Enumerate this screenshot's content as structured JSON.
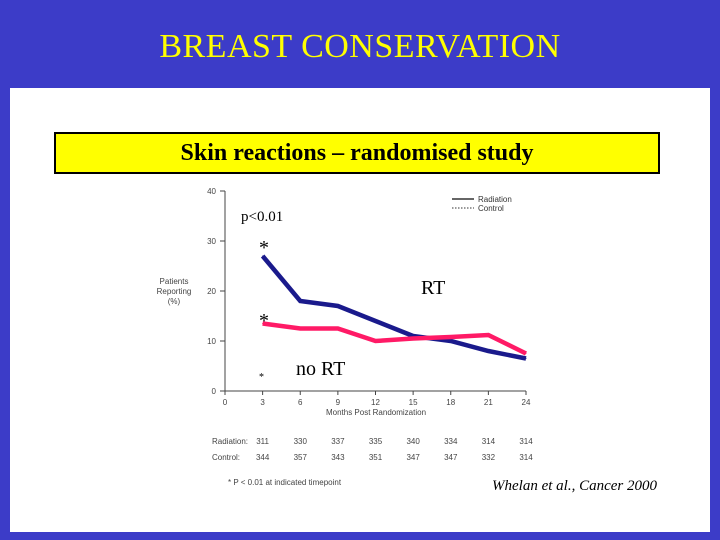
{
  "slide": {
    "title": "BREAST CONSERVATION",
    "subtitle": "Skin reactions – randomised study",
    "citation": "Whelan et al., Cancer 2000",
    "colors": {
      "frame": "#3c3cc8",
      "title": "#ffff00",
      "subtitle_bg": "#ffff00",
      "rt_line": "#1a1a8c",
      "no_rt_line": "#ff1a66"
    }
  },
  "chart_data": {
    "type": "line",
    "ylabel": "Patients\nReporting\n(%)",
    "xlabel": "Months Post Randomization",
    "x": [
      3,
      6,
      9,
      12,
      15,
      18,
      21,
      24
    ],
    "xticks": [
      0,
      3,
      6,
      9,
      12,
      15,
      18,
      21,
      24
    ],
    "yticks": [
      0,
      10,
      20,
      30,
      40
    ],
    "xlim": [
      0,
      24
    ],
    "ylim": [
      0,
      40
    ],
    "series": [
      {
        "name": "Radiation",
        "label": "RT",
        "values": [
          27,
          18,
          17,
          14,
          11,
          10,
          8,
          6.5
        ]
      },
      {
        "name": "Control",
        "label": "no RT",
        "values": [
          13.5,
          12.5,
          12.5,
          10,
          10.5,
          10.8,
          11.2,
          7.5
        ]
      }
    ],
    "legend": {
      "position": "top-right",
      "items": [
        "Radiation",
        "Control"
      ]
    },
    "annotations": {
      "p_value": "p<0.01",
      "asterisk": "*",
      "small_asterisk": "*",
      "footnote": "* P < 0.01 at indicated timepoint"
    },
    "table": {
      "rows": [
        {
          "label": "Radiation:",
          "values": [
            "311",
            "330",
            "337",
            "335",
            "340",
            "334",
            "314",
            "314"
          ]
        },
        {
          "label": "Control:",
          "values": [
            "344",
            "357",
            "343",
            "351",
            "347",
            "347",
            "332",
            "314"
          ]
        }
      ]
    }
  }
}
